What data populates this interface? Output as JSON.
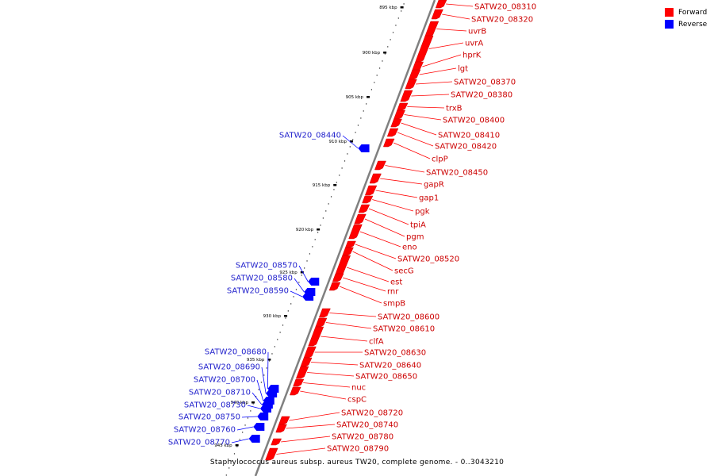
{
  "colors": {
    "forward": "#ff0000",
    "reverse": "#0000ff",
    "backbone": "#808080"
  },
  "legend": [
    {
      "label": "Forward",
      "color": "#ff0000"
    },
    {
      "label": "Reverse",
      "color": "#0000ff"
    }
  ],
  "footer": "Staphylococcus aureus subsp. aureus TW20, complete genome. - 0..3043210",
  "ticks": [
    "895 kbp",
    "900 kbp",
    "905 kbp",
    "910 kbp",
    "915 kbp",
    "920 kbp",
    "925 kbp",
    "930 kbp",
    "935 kbp",
    "940 kbp",
    "945 kbp"
  ],
  "forward_genes": [
    "SATW20_08310",
    "SATW20_08320",
    "uvrB",
    "uvrA",
    "hprK",
    "lgt",
    "SATW20_08370",
    "SATW20_08380",
    "trxB",
    "SATW20_08400",
    "SATW20_08410",
    "SATW20_08420",
    "clpP",
    "SATW20_08450",
    "gapR",
    "gap1",
    "pgk",
    "tpiA",
    "pgm",
    "eno",
    "SATW20_08520",
    "secG",
    "est",
    "rnr",
    "smpB",
    "SATW20_08600",
    "SATW20_08610",
    "clfA",
    "SATW20_08630",
    "SATW20_08640",
    "SATW20_08650",
    "nuc",
    "cspC",
    "SATW20_08720",
    "SATW20_08740",
    "SATW20_08780",
    "SATW20_08790"
  ],
  "reverse_genes": [
    "SATW20_08440",
    "SATW20_08570",
    "SATW20_08580",
    "SATW20_08590",
    "SATW20_08680",
    "SATW20_08690",
    "SATW20_08700",
    "SATW20_08710",
    "SATW20_08730",
    "SATW20_08750",
    "SATW20_08760",
    "SATW20_08770"
  ]
}
